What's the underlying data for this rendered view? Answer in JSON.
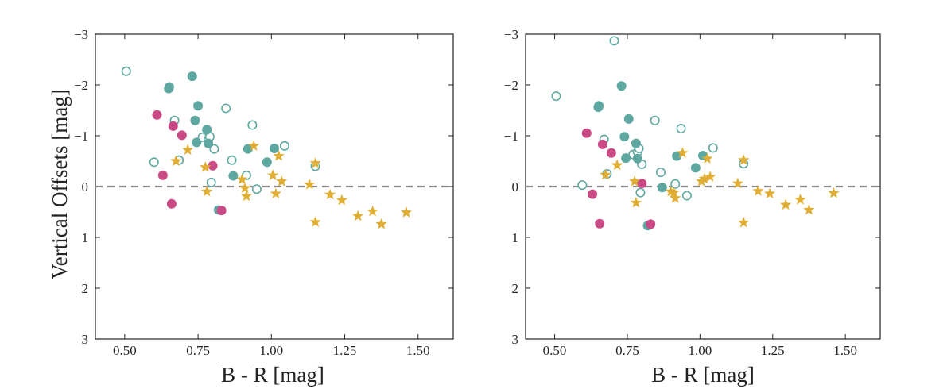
{
  "figure": {
    "ylabel": "Vertical Offsets [mag]",
    "xlabel": "B - R [mag]",
    "colors": {
      "teal": "#5fa8a2",
      "magenta": "#c94a84",
      "gold": "#e0ae34",
      "dash": "#8a8a8a",
      "axis": "#222222"
    }
  },
  "chart_data": [
    {
      "type": "scatter",
      "title": "",
      "xlabel": "B - R [mag]",
      "ylabel": "Vertical Offsets [mag]",
      "xlim": [
        0.4,
        1.62
      ],
      "ylim": [
        3,
        -3
      ],
      "y_inverted": true,
      "xticks": [
        "0.50",
        "0.75",
        "1.00",
        "1.25",
        "1.50"
      ],
      "yticks": [
        "−3",
        "−2",
        "−1",
        "0",
        "1",
        "2",
        "3"
      ],
      "reference_line": {
        "y": 0,
        "style": "dashed"
      },
      "grid": false,
      "legend": "none",
      "series": [
        {
          "marker": "open-circle",
          "color": "#5fa8a2",
          "points": [
            [
              0.505,
              -2.27
            ],
            [
              0.6,
              -0.48
            ],
            [
              0.67,
              -1.3
            ],
            [
              0.685,
              -0.52
            ],
            [
              0.765,
              -0.97
            ],
            [
              0.785,
              -0.93
            ],
            [
              0.79,
              -0.98
            ],
            [
              0.795,
              -0.08
            ],
            [
              0.805,
              -0.74
            ],
            [
              0.845,
              -1.54
            ],
            [
              0.865,
              -0.52
            ],
            [
              0.915,
              -0.22
            ],
            [
              0.935,
              -1.21
            ],
            [
              0.95,
              0.05
            ],
            [
              1.045,
              -0.8
            ],
            [
              1.15,
              -0.4
            ]
          ]
        },
        {
          "marker": "filled-circle",
          "color": "#5fa8a2",
          "points": [
            [
              0.65,
              -1.93
            ],
            [
              0.652,
              -1.96
            ],
            [
              0.73,
              -2.17
            ],
            [
              0.74,
              -1.3
            ],
            [
              0.745,
              -0.87
            ],
            [
              0.75,
              -1.59
            ],
            [
              0.78,
              -1.12
            ],
            [
              0.785,
              -0.85
            ],
            [
              0.87,
              -0.21
            ],
            [
              0.92,
              -0.74
            ],
            [
              0.985,
              -0.48
            ],
            [
              1.01,
              -0.75
            ],
            [
              0.82,
              0.46
            ]
          ]
        },
        {
          "marker": "filled-circle",
          "color": "#c94a84",
          "points": [
            [
              0.61,
              -1.41
            ],
            [
              0.63,
              -0.22
            ],
            [
              0.665,
              -1.19
            ],
            [
              0.695,
              -1.01
            ],
            [
              0.8,
              -0.41
            ],
            [
              0.66,
              0.34
            ],
            [
              0.83,
              0.47
            ]
          ]
        },
        {
          "marker": "star",
          "color": "#e0ae34",
          "points": [
            [
              0.675,
              -0.5
            ],
            [
              0.715,
              -0.72
            ],
            [
              0.775,
              -0.38
            ],
            [
              0.78,
              0.1
            ],
            [
              0.9,
              -0.14
            ],
            [
              0.91,
              0.03
            ],
            [
              0.915,
              0.19
            ],
            [
              0.94,
              -0.8
            ],
            [
              1.005,
              -0.22
            ],
            [
              1.015,
              0.14
            ],
            [
              1.025,
              -0.6
            ],
            [
              1.035,
              -0.1
            ],
            [
              1.13,
              -0.04
            ],
            [
              1.15,
              -0.46
            ],
            [
              1.15,
              0.7
            ],
            [
              1.2,
              0.16
            ],
            [
              1.24,
              0.27
            ],
            [
              1.295,
              0.58
            ],
            [
              1.345,
              0.49
            ],
            [
              1.375,
              0.74
            ],
            [
              1.46,
              0.51
            ]
          ]
        }
      ]
    },
    {
      "type": "scatter",
      "title": "",
      "xlabel": "B - R [mag]",
      "ylabel": "",
      "xlim": [
        0.4,
        1.62
      ],
      "ylim": [
        3,
        -3
      ],
      "y_inverted": true,
      "xticks": [
        "0.50",
        "0.75",
        "1.00",
        "1.25",
        "1.50"
      ],
      "yticks": [
        "−3",
        "−2",
        "−1",
        "0",
        "1",
        "2",
        "3"
      ],
      "reference_line": {
        "y": 0,
        "style": "dashed"
      },
      "grid": false,
      "legend": "none",
      "series": [
        {
          "marker": "open-circle",
          "color": "#5fa8a2",
          "points": [
            [
              0.505,
              -1.78
            ],
            [
              0.595,
              -0.03
            ],
            [
              0.67,
              -0.93
            ],
            [
              0.68,
              -0.25
            ],
            [
              0.705,
              -2.87
            ],
            [
              0.77,
              -0.63
            ],
            [
              0.785,
              -0.68
            ],
            [
              0.79,
              -0.75
            ],
            [
              0.795,
              0.12
            ],
            [
              0.8,
              -0.44
            ],
            [
              0.845,
              -1.3
            ],
            [
              0.865,
              -0.28
            ],
            [
              0.915,
              -0.05
            ],
            [
              0.935,
              -1.14
            ],
            [
              0.955,
              0.18
            ],
            [
              1.045,
              -0.76
            ],
            [
              1.15,
              -0.45
            ]
          ]
        },
        {
          "marker": "filled-circle",
          "color": "#5fa8a2",
          "points": [
            [
              0.65,
              -1.56
            ],
            [
              0.652,
              -1.59
            ],
            [
              0.73,
              -1.98
            ],
            [
              0.74,
              -0.98
            ],
            [
              0.745,
              -0.56
            ],
            [
              0.755,
              -1.33
            ],
            [
              0.78,
              -0.85
            ],
            [
              0.785,
              -0.55
            ],
            [
              0.87,
              0.02
            ],
            [
              0.92,
              -0.6
            ],
            [
              0.985,
              -0.37
            ],
            [
              1.01,
              -0.61
            ],
            [
              0.82,
              0.77
            ]
          ]
        },
        {
          "marker": "filled-circle",
          "color": "#c94a84",
          "points": [
            [
              0.61,
              -1.05
            ],
            [
              0.63,
              0.15
            ],
            [
              0.665,
              -0.83
            ],
            [
              0.695,
              -0.66
            ],
            [
              0.8,
              -0.06
            ],
            [
              0.655,
              0.73
            ],
            [
              0.83,
              0.74
            ]
          ]
        },
        {
          "marker": "star",
          "color": "#e0ae34",
          "points": [
            [
              0.675,
              -0.23
            ],
            [
              0.715,
              -0.42
            ],
            [
              0.775,
              -0.1
            ],
            [
              0.78,
              0.32
            ],
            [
              0.9,
              0.1
            ],
            [
              0.91,
              0.12
            ],
            [
              0.915,
              0.23
            ],
            [
              0.94,
              -0.66
            ],
            [
              1.005,
              -0.1
            ],
            [
              1.015,
              -0.15
            ],
            [
              1.025,
              -0.55
            ],
            [
              1.035,
              -0.19
            ],
            [
              1.13,
              -0.06
            ],
            [
              1.15,
              -0.52
            ],
            [
              1.15,
              0.71
            ],
            [
              1.2,
              0.09
            ],
            [
              1.24,
              0.14
            ],
            [
              1.295,
              0.36
            ],
            [
              1.345,
              0.26
            ],
            [
              1.375,
              0.46
            ],
            [
              1.46,
              0.13
            ]
          ]
        }
      ]
    }
  ]
}
